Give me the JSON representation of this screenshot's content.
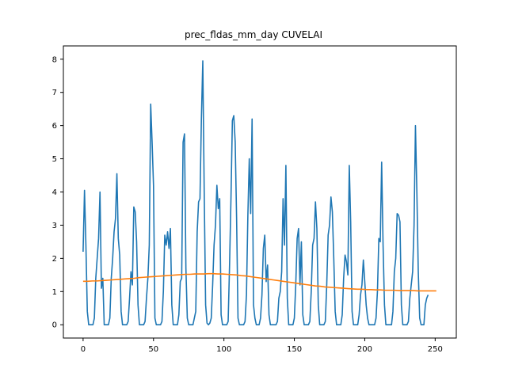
{
  "chart_data": {
    "type": "line",
    "title": "prec_fldas_mm_day CUVELAI",
    "xlabel": "",
    "ylabel": "",
    "xlim": [
      -14,
      265
    ],
    "ylim": [
      -0.4,
      8.4
    ],
    "x_ticks": [
      0,
      50,
      100,
      150,
      200,
      250
    ],
    "y_ticks": [
      0,
      1,
      2,
      3,
      4,
      5,
      6,
      7,
      8
    ],
    "grid": false,
    "colors": {
      "series1": "#1f77b4",
      "series2": "#ff7f0e"
    },
    "series": [
      {
        "values": [
          2.2,
          4.05,
          2.4,
          0.4,
          0,
          0,
          0,
          0,
          0.2,
          1.4,
          2.0,
          2.6,
          4.0,
          1.1,
          1.4,
          0,
          0,
          0,
          0,
          0.2,
          1.4,
          2.0,
          2.8,
          3.2,
          4.55,
          2.6,
          2.1,
          0.4,
          0,
          0,
          0,
          0,
          0.1,
          0.8,
          1.6,
          1.2,
          3.55,
          3.4,
          2.5,
          0.6,
          0,
          0,
          0,
          0,
          0.1,
          0.8,
          1.4,
          2.4,
          6.65,
          5.5,
          4.2,
          0.2,
          0,
          0,
          0,
          0,
          0.1,
          1.0,
          2.7,
          2.4,
          2.8,
          2.3,
          2.9,
          0.6,
          0,
          0,
          0,
          0,
          0.3,
          1.3,
          1.4,
          5.5,
          5.75,
          1.7,
          0.2,
          0,
          0,
          0,
          0,
          0.2,
          0.4,
          2.8,
          3.7,
          3.8,
          6.2,
          7.95,
          4.0,
          0.6,
          0.05,
          0,
          0.05,
          0.2,
          1.2,
          2.4,
          3.0,
          4.2,
          3.5,
          3.8,
          0.3,
          0,
          0,
          0,
          0,
          0.1,
          1.8,
          3.8,
          6.15,
          6.3,
          5.5,
          3.2,
          0.2,
          0,
          0,
          0,
          0,
          0.1,
          0.9,
          3.3,
          5.0,
          3.35,
          6.2,
          0.6,
          0.2,
          0,
          0,
          0,
          0.2,
          0.9,
          2.3,
          2.7,
          1.3,
          1.8,
          0.3,
          0,
          0,
          0,
          0,
          0,
          0.1,
          0.8,
          1.0,
          1.6,
          3.8,
          2.4,
          4.8,
          0.8,
          0,
          0,
          0,
          0,
          0.2,
          1.2,
          2.6,
          2.9,
          1.2,
          2.5,
          0.3,
          0,
          0,
          0,
          0,
          0.1,
          1.0,
          2.4,
          2.6,
          3.7,
          2.9,
          0.6,
          0,
          0,
          0,
          0,
          0.1,
          1.2,
          2.7,
          3.0,
          3.85,
          3.4,
          2.0,
          0.4,
          0,
          0,
          0,
          0,
          0.3,
          1.4,
          2.1,
          1.9,
          1.5,
          4.8,
          3.1,
          0.4,
          0,
          0,
          0,
          0,
          0.3,
          0.9,
          1.2,
          1.95,
          1.3,
          0.6,
          0.2,
          0,
          0,
          0,
          0,
          0,
          0.2,
          1.0,
          2.6,
          2.5,
          4.9,
          2.4,
          0.6,
          0,
          0,
          0,
          0,
          0,
          0.4,
          1.6,
          2.0,
          3.35,
          3.3,
          3.1,
          0.6,
          0,
          0,
          0,
          0,
          0.1,
          0.8,
          1.2,
          1.6,
          3.0,
          6.0,
          4.0,
          1.6,
          0.2,
          0,
          0,
          0,
          0.6,
          0.8,
          0.9
        ]
      },
      {
        "values": [
          1.31,
          1.31,
          1.32,
          1.32,
          1.33,
          1.34,
          1.35,
          1.36,
          1.37,
          1.38,
          1.39,
          1.4,
          1.42,
          1.43,
          1.44,
          1.45,
          1.46,
          1.47,
          1.48,
          1.49,
          1.5,
          1.51,
          1.52,
          1.52,
          1.53,
          1.53,
          1.53,
          1.54,
          1.54,
          1.53,
          1.53,
          1.52,
          1.51,
          1.5,
          1.48,
          1.47,
          1.45,
          1.43,
          1.41,
          1.39,
          1.37,
          1.35,
          1.33,
          1.31,
          1.29,
          1.27,
          1.25,
          1.23,
          1.21,
          1.19,
          1.17,
          1.16,
          1.14,
          1.13,
          1.12,
          1.11,
          1.1,
          1.09,
          1.08,
          1.07,
          1.07,
          1.06,
          1.06,
          1.05,
          1.05,
          1.04,
          1.04,
          1.04,
          1.03,
          1.03,
          1.03,
          1.03,
          1.02,
          1.02,
          1.02,
          1.02,
          1.02
        ],
        "x_step": 3.3
      }
    ]
  }
}
